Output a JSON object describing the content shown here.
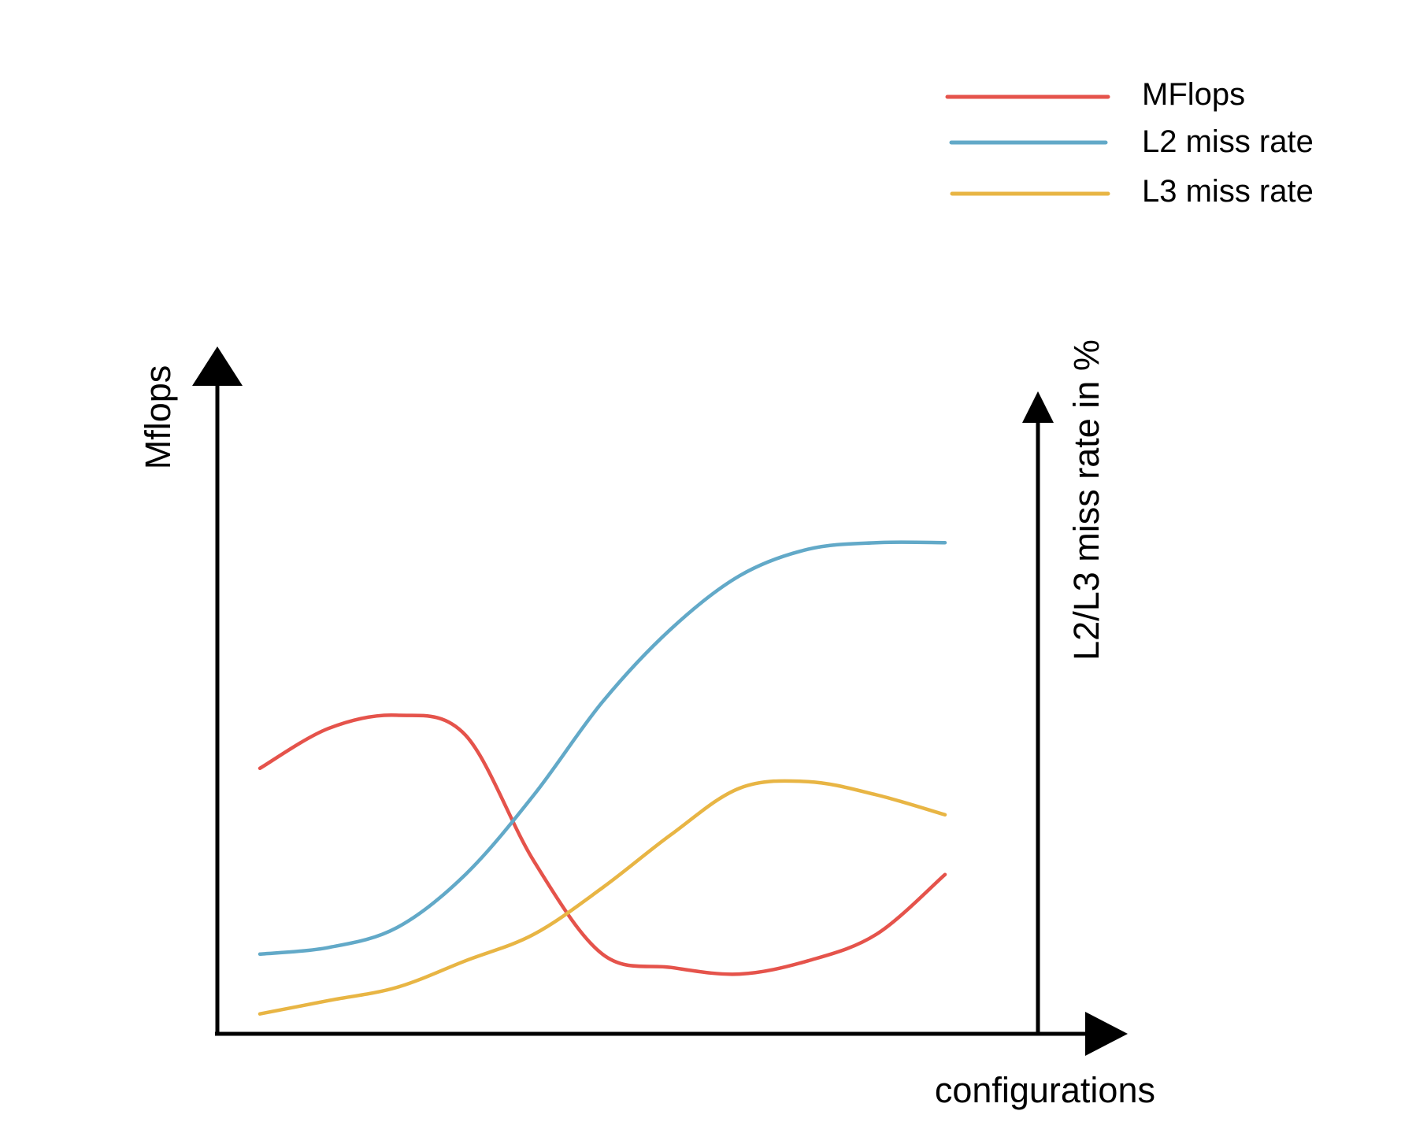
{
  "chart_data": {
    "type": "line",
    "title": "",
    "xlabel": "configurations",
    "ylabel_left": "Mflops",
    "ylabel_right": "L2/L3 miss rate in %",
    "grid": false,
    "legend_position": "top-right",
    "x": [
      0.0,
      0.1,
      0.2,
      0.3,
      0.4,
      0.5,
      0.6,
      0.7,
      0.8,
      0.9,
      1.0
    ],
    "ylim": [
      0,
      1
    ],
    "series": [
      {
        "name": "MFlops",
        "color": "#e5534b",
        "axis": "left",
        "values": [
          0.4,
          0.46,
          0.48,
          0.45,
          0.26,
          0.12,
          0.1,
          0.09,
          0.11,
          0.15,
          0.24
        ]
      },
      {
        "name": "L2 miss rate",
        "color": "#62a9c8",
        "axis": "right",
        "values": [
          0.12,
          0.13,
          0.16,
          0.24,
          0.36,
          0.5,
          0.61,
          0.69,
          0.73,
          0.74,
          0.74
        ]
      },
      {
        "name": "L3 miss rate",
        "color": "#e8b544",
        "axis": "right",
        "values": [
          0.03,
          0.05,
          0.07,
          0.11,
          0.15,
          0.22,
          0.3,
          0.37,
          0.38,
          0.36,
          0.33
        ]
      }
    ]
  }
}
